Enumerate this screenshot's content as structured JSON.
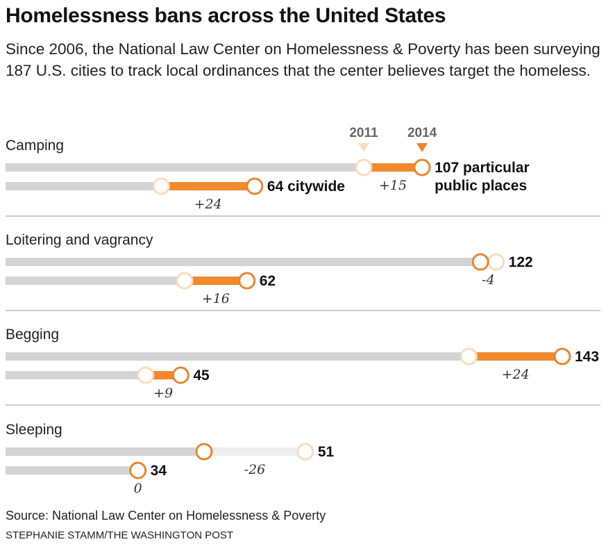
{
  "title": "Homelessness bans across the United States",
  "subtitle": "Since 2006, the National Law Center on Homelessness & Poverty has been surveying 187 U.S. cities to track local ordinances that the center believes target the homeless.",
  "source": "Source: National Law Center on Homelessness & Poverty",
  "credit": "STEPHANIE STAMM/THE WASHINGTON POST",
  "colors": {
    "track": "#d4d4d4",
    "increase": "#f08a2c",
    "decrease_track": "#eeeeee",
    "marker_2011": "#f9dcc0",
    "marker_2014": "#e8862e",
    "divider": "#999999"
  },
  "chart_data": {
    "type": "dumbbell",
    "x_max": 143,
    "legend": {
      "year_start": "2011",
      "year_end": "2014"
    },
    "categories": [
      {
        "name": "Camping",
        "rows": [
          {
            "scope": "particular public places",
            "v2011": 92,
            "v2014": 107,
            "label": "107 particular public places",
            "label_lines": [
              "107 particular",
              "public places"
            ],
            "change": "+15"
          },
          {
            "scope": "citywide",
            "v2011": 40,
            "v2014": 64,
            "label": "64 citywide",
            "label_lines": [
              "64 citywide"
            ],
            "change": "+24"
          }
        ]
      },
      {
        "name": "Loitering and vagrancy",
        "rows": [
          {
            "scope": "particular public places",
            "v2011": 126,
            "v2014": 122,
            "label": "122",
            "label_lines": [
              "122"
            ],
            "change": "-4"
          },
          {
            "scope": "citywide",
            "v2011": 46,
            "v2014": 62,
            "label": "62",
            "label_lines": [
              "62"
            ],
            "change": "+16"
          }
        ]
      },
      {
        "name": "Begging",
        "rows": [
          {
            "scope": "particular public places",
            "v2011": 119,
            "v2014": 143,
            "label": "143",
            "label_lines": [
              "143"
            ],
            "change": "+24"
          },
          {
            "scope": "citywide",
            "v2011": 36,
            "v2014": 45,
            "label": "45",
            "label_lines": [
              "45"
            ],
            "change": "+9"
          }
        ]
      },
      {
        "name": "Sleeping",
        "rows": [
          {
            "scope": "particular public places",
            "v2011": 77,
            "v2014": 51,
            "label": "51",
            "label_lines": [
              "51"
            ],
            "change": "-26"
          },
          {
            "scope": "citywide",
            "v2011": 34,
            "v2014": 34,
            "label": "34",
            "label_lines": [
              "34"
            ],
            "change": "0"
          }
        ]
      }
    ]
  }
}
